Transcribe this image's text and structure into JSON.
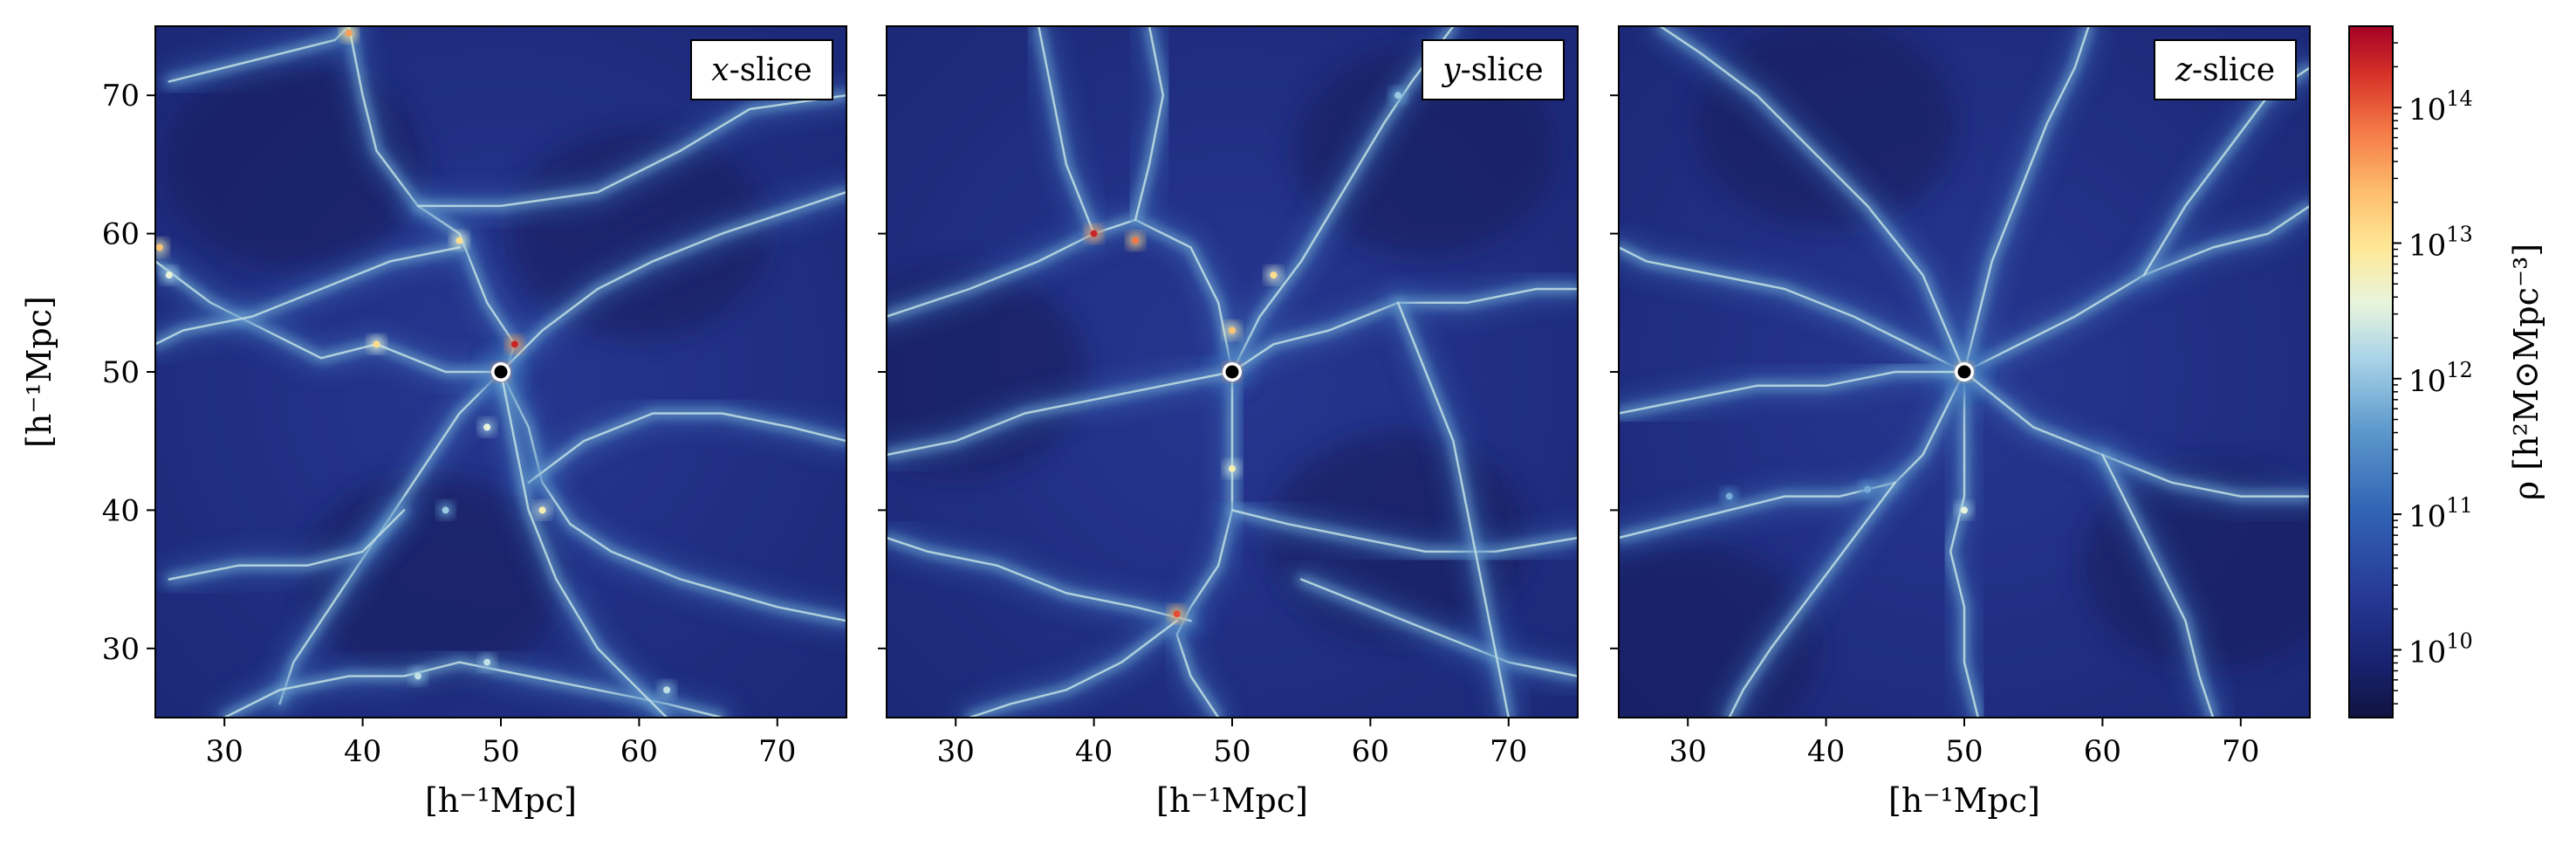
{
  "chart_data": {
    "type": "heatmap",
    "colormap": "RdYlBu_r",
    "colorscale": "log",
    "panels": [
      {
        "tag": "x",
        "tag_suffix": "-slice",
        "marker": [
          50,
          50
        ],
        "xlabel": "[h⁻¹Mpc]",
        "ylabel": "[h⁻¹Mpc]"
      },
      {
        "tag": "y",
        "tag_suffix": "-slice",
        "marker": [
          50,
          50
        ],
        "xlabel": "[h⁻¹Mpc]",
        "ylabel": ""
      },
      {
        "tag": "z",
        "tag_suffix": "-slice",
        "marker": [
          50,
          50
        ],
        "xlabel": "[h⁻¹Mpc]",
        "ylabel": ""
      }
    ],
    "xlim": [
      25,
      75
    ],
    "ylim": [
      25,
      75
    ],
    "xticks": [
      30,
      40,
      50,
      60,
      70
    ],
    "yticks": [
      30,
      40,
      50,
      60,
      70
    ],
    "colorbar": {
      "label": "ρ  [h²M⊙Mpc⁻³]",
      "range": [
        9.5,
        14.6
      ],
      "ticks": [
        {
          "value": 10,
          "base": "10",
          "exp": "10"
        },
        {
          "value": 11,
          "base": "10",
          "exp": "11"
        },
        {
          "value": 12,
          "base": "10",
          "exp": "12"
        },
        {
          "value": 13,
          "base": "10",
          "exp": "13"
        },
        {
          "value": 14,
          "base": "10",
          "exp": "14"
        }
      ]
    },
    "filaments": [
      [
        [
          [
            26,
            71
          ],
          [
            30,
            72
          ],
          [
            34,
            73
          ],
          [
            38,
            74
          ],
          [
            39,
            75
          ]
        ],
        [
          [
            39,
            75
          ],
          [
            40,
            70
          ],
          [
            41,
            66
          ],
          [
            44,
            62
          ],
          [
            47,
            60
          ],
          [
            49,
            55
          ],
          [
            51,
            52
          ],
          [
            50,
            49
          ]
        ],
        [
          [
            50,
            50
          ],
          [
            47,
            47
          ],
          [
            45,
            44
          ],
          [
            43,
            41
          ],
          [
            41,
            38
          ],
          [
            39,
            35
          ],
          [
            37,
            32
          ],
          [
            35,
            29
          ],
          [
            34,
            26
          ]
        ],
        [
          [
            50,
            50
          ],
          [
            52,
            46
          ],
          [
            53,
            42
          ],
          [
            55,
            39
          ],
          [
            58,
            37
          ],
          [
            63,
            35
          ],
          [
            70,
            33
          ],
          [
            75,
            32
          ]
        ],
        [
          [
            50,
            50
          ],
          [
            53,
            53
          ],
          [
            57,
            56
          ],
          [
            61,
            58
          ],
          [
            66,
            60
          ],
          [
            72,
            62
          ],
          [
            75,
            63
          ]
        ],
        [
          [
            25,
            58
          ],
          [
            29,
            55
          ],
          [
            33,
            53
          ],
          [
            37,
            51
          ],
          [
            41,
            52
          ],
          [
            46,
            50
          ],
          [
            50,
            50
          ]
        ],
        [
          [
            30,
            25
          ],
          [
            34,
            27
          ],
          [
            39,
            28
          ],
          [
            43,
            28
          ],
          [
            47,
            29
          ],
          [
            52,
            28
          ],
          [
            57,
            27
          ],
          [
            62,
            26
          ],
          [
            66,
            25
          ]
        ],
        [
          [
            47,
            59
          ],
          [
            42,
            58
          ],
          [
            37,
            56
          ],
          [
            32,
            54
          ],
          [
            27,
            53
          ],
          [
            25,
            52
          ]
        ],
        [
          [
            52,
            42
          ],
          [
            56,
            45
          ],
          [
            61,
            47
          ],
          [
            66,
            47
          ],
          [
            71,
            46
          ],
          [
            75,
            45
          ]
        ],
        [
          [
            44,
            62
          ],
          [
            50,
            62
          ],
          [
            57,
            63
          ],
          [
            63,
            66
          ],
          [
            68,
            69
          ],
          [
            75,
            70
          ]
        ],
        [
          [
            43,
            40
          ],
          [
            40,
            37
          ],
          [
            36,
            36
          ],
          [
            31,
            36
          ],
          [
            26,
            35
          ]
        ],
        [
          [
            50,
            50
          ],
          [
            51,
            45
          ],
          [
            52,
            40
          ],
          [
            54,
            35
          ],
          [
            57,
            30
          ],
          [
            61,
            26
          ],
          [
            62,
            25
          ]
        ]
      ],
      [
        [
          [
            50,
            50
          ],
          [
            49,
            55
          ],
          [
            47,
            59
          ],
          [
            43,
            61
          ],
          [
            40,
            60
          ],
          [
            36,
            58
          ],
          [
            31,
            56
          ],
          [
            25,
            54
          ]
        ],
        [
          [
            40,
            60
          ],
          [
            38,
            65
          ],
          [
            37,
            70
          ],
          [
            36,
            75
          ]
        ],
        [
          [
            50,
            50
          ],
          [
            52,
            54
          ],
          [
            55,
            58
          ],
          [
            58,
            63
          ],
          [
            61,
            68
          ],
          [
            63,
            71
          ],
          [
            66,
            75
          ]
        ],
        [
          [
            50,
            50
          ],
          [
            50,
            45
          ],
          [
            50,
            40
          ],
          [
            49,
            36
          ],
          [
            47,
            33
          ],
          [
            46,
            31
          ],
          [
            47,
            28
          ],
          [
            49,
            25
          ]
        ],
        [
          [
            47,
            32
          ],
          [
            43,
            33
          ],
          [
            38,
            34
          ],
          [
            33,
            36
          ],
          [
            28,
            37
          ],
          [
            25,
            38
          ]
        ],
        [
          [
            50,
            50
          ],
          [
            53,
            52
          ],
          [
            57,
            53
          ],
          [
            62,
            55
          ],
          [
            67,
            55
          ],
          [
            72,
            56
          ],
          [
            75,
            56
          ]
        ],
        [
          [
            46,
            32
          ],
          [
            42,
            29
          ],
          [
            38,
            27
          ],
          [
            34,
            26
          ],
          [
            31,
            25
          ]
        ],
        [
          [
            55,
            35
          ],
          [
            60,
            33
          ],
          [
            65,
            31
          ],
          [
            70,
            29
          ],
          [
            75,
            28
          ]
        ],
        [
          [
            25,
            44
          ],
          [
            30,
            45
          ],
          [
            35,
            47
          ],
          [
            40,
            48
          ],
          [
            45,
            49
          ],
          [
            50,
            50
          ]
        ],
        [
          [
            50,
            40
          ],
          [
            54,
            39
          ],
          [
            59,
            38
          ],
          [
            64,
            37
          ],
          [
            69,
            37
          ],
          [
            75,
            38
          ]
        ],
        [
          [
            43,
            61
          ],
          [
            44,
            65
          ],
          [
            45,
            70
          ],
          [
            44,
            75
          ]
        ],
        [
          [
            62,
            55
          ],
          [
            64,
            50
          ],
          [
            66,
            45
          ],
          [
            67,
            40
          ],
          [
            68,
            35
          ],
          [
            69,
            30
          ],
          [
            70,
            25
          ]
        ]
      ],
      [
        [
          [
            50,
            50
          ],
          [
            50,
            45
          ],
          [
            50,
            41
          ],
          [
            49,
            37
          ],
          [
            50,
            33
          ],
          [
            50,
            29
          ],
          [
            51,
            25
          ]
        ],
        [
          [
            50,
            50
          ],
          [
            46,
            52
          ],
          [
            42,
            54
          ],
          [
            37,
            56
          ],
          [
            32,
            57
          ],
          [
            27,
            58
          ],
          [
            25,
            59
          ]
        ],
        [
          [
            50,
            50
          ],
          [
            54,
            52
          ],
          [
            58,
            54
          ],
          [
            63,
            57
          ],
          [
            68,
            59
          ],
          [
            72,
            60
          ],
          [
            75,
            62
          ]
        ],
        [
          [
            50,
            50
          ],
          [
            47,
            44
          ],
          [
            45,
            42
          ],
          [
            41,
            41
          ],
          [
            37,
            41
          ],
          [
            33,
            40
          ],
          [
            29,
            39
          ],
          [
            25,
            38
          ]
        ],
        [
          [
            50,
            50
          ],
          [
            52,
            58
          ],
          [
            54,
            63
          ],
          [
            56,
            68
          ],
          [
            58,
            72
          ],
          [
            59,
            75
          ]
        ],
        [
          [
            50,
            50
          ],
          [
            47,
            57
          ],
          [
            43,
            62
          ],
          [
            39,
            66
          ],
          [
            35,
            70
          ],
          [
            31,
            73
          ],
          [
            28,
            75
          ]
        ],
        [
          [
            50,
            50
          ],
          [
            55,
            46
          ],
          [
            60,
            44
          ],
          [
            65,
            42
          ],
          [
            70,
            41
          ],
          [
            75,
            41
          ]
        ],
        [
          [
            25,
            47
          ],
          [
            30,
            48
          ],
          [
            35,
            49
          ],
          [
            40,
            49
          ],
          [
            45,
            50
          ],
          [
            50,
            50
          ]
        ],
        [
          [
            60,
            44
          ],
          [
            62,
            40
          ],
          [
            64,
            36
          ],
          [
            66,
            32
          ],
          [
            67,
            28
          ],
          [
            68,
            25
          ]
        ],
        [
          [
            45,
            42
          ],
          [
            42,
            38
          ],
          [
            39,
            34
          ],
          [
            36,
            30
          ],
          [
            34,
            27
          ],
          [
            33,
            25
          ]
        ],
        [
          [
            63,
            57
          ],
          [
            66,
            62
          ],
          [
            69,
            66
          ],
          [
            72,
            70
          ],
          [
            75,
            72
          ]
        ]
      ]
    ],
    "nodes": [
      [
        [
          50,
          50,
          1.0
        ],
        [
          51,
          52,
          0.95
        ],
        [
          39,
          74.5,
          0.8
        ],
        [
          47,
          59.5,
          0.7
        ],
        [
          41,
          52,
          0.7
        ],
        [
          25.3,
          59,
          0.75
        ],
        [
          49,
          46,
          0.6
        ],
        [
          53,
          40,
          0.65
        ],
        [
          44,
          28,
          0.55
        ],
        [
          49,
          29,
          0.55
        ],
        [
          62,
          27,
          0.55
        ],
        [
          46,
          40,
          0.5
        ],
        [
          26,
          57,
          0.6
        ]
      ],
      [
        [
          50,
          50,
          1.0
        ],
        [
          40,
          60,
          0.95
        ],
        [
          43,
          59.5,
          0.85
        ],
        [
          46,
          32.5,
          0.9
        ],
        [
          53,
          57,
          0.7
        ],
        [
          50,
          43,
          0.65
        ],
        [
          62,
          70,
          0.5
        ],
        [
          50,
          53,
          0.75
        ]
      ],
      [
        [
          50,
          50,
          0.9
        ],
        [
          50,
          40,
          0.6
        ],
        [
          43,
          41.5,
          0.45
        ],
        [
          33,
          41,
          0.45
        ]
      ]
    ]
  }
}
